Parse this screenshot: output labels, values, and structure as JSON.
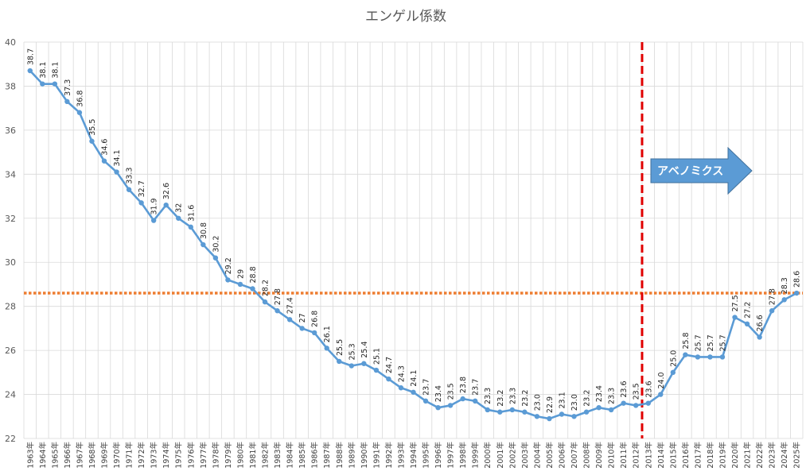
{
  "chart_data": {
    "type": "line",
    "title": "エンゲル係数",
    "xlabel": "",
    "ylabel": "",
    "ylim": [
      22,
      40
    ],
    "yticks": [
      "22",
      "24",
      "26",
      "28",
      "30",
      "32",
      "34",
      "36",
      "38",
      "40"
    ],
    "grid": true,
    "legend": "none",
    "categories": [
      "1963年",
      "1964年",
      "1965年",
      "1966年",
      "1967年",
      "1968年",
      "1969年",
      "1970年",
      "1971年",
      "1972年",
      "1973年",
      "1974年",
      "1975年",
      "1976年",
      "1977年",
      "1978年",
      "1979年",
      "1980年",
      "1981年",
      "1982年",
      "1983年",
      "1984年",
      "1985年",
      "1986年",
      "1987年",
      "1988年",
      "1989年",
      "1990年",
      "1991年",
      "1992年",
      "1993年",
      "1994年",
      "1995年",
      "1996年",
      "1997年",
      "1998年",
      "1999年",
      "2000年",
      "2001年",
      "2002年",
      "2003年",
      "2004年",
      "2005年",
      "2006年",
      "2007年",
      "2008年",
      "2009年",
      "2010年",
      "2011年",
      "2012年",
      "2013年",
      "2014年",
      "2015年",
      "2016年",
      "2017年",
      "2018年",
      "2019年",
      "2020年",
      "2021年",
      "2022年",
      "2023年",
      "2024年",
      "2025年"
    ],
    "series": [
      {
        "values": [
          38.7,
          38.1,
          38.1,
          37.3,
          36.8,
          35.5,
          34.6,
          34.1,
          33.3,
          32.7,
          31.9,
          32.6,
          32,
          31.6,
          30.8,
          30.2,
          29.2,
          29,
          28.8,
          28.2,
          27.8,
          27.4,
          27,
          26.8,
          26.1,
          25.5,
          25.3,
          25.4,
          25.1,
          24.7,
          24.3,
          24.1,
          23.7,
          23.4,
          23.5,
          23.8,
          23.7,
          23.3,
          23.2,
          23.3,
          23.2,
          23.0,
          22.9,
          23.1,
          23.0,
          23.2,
          23.4,
          23.3,
          23.6,
          23.5,
          23.6,
          24.0,
          25.0,
          25.8,
          25.7,
          25.7,
          25.7,
          27.5,
          27.2,
          26.6,
          27.8,
          28.3,
          28.6
        ],
        "labels": [
          "38.7",
          "38.1",
          "38.1",
          "37.3",
          "36.8",
          "35.5",
          "34.6",
          "34.1",
          "33.3",
          "32.7",
          "31.9",
          "32.6",
          "32",
          "31.6",
          "30.8",
          "30.2",
          "29.2",
          "29",
          "28.8",
          "28.2",
          "27.8",
          "27.4",
          "27",
          "26.8",
          "26.1",
          "25.5",
          "25.3",
          "25.4",
          "25.1",
          "24.7",
          "24.3",
          "24.1",
          "23.7",
          "23.4",
          "23.5",
          "23.8",
          "23.7",
          "23.3",
          "23.2",
          "23.3",
          "23.2",
          "23.0",
          "22.9",
          "23.1",
          "23.0",
          "23.2",
          "23.4",
          "23.3",
          "23.6",
          "23.5",
          "23.6",
          "24.0",
          "25.0",
          "25.8",
          "25.7",
          "25.7",
          "25.7",
          "27.5",
          "27.2",
          "26.6",
          "27.8",
          "28.3",
          "28.6"
        ],
        "color": "#5b9bd5"
      }
    ],
    "reference_lines": [
      {
        "orientation": "horizontal",
        "value": 28.6,
        "color": "#ed7d31",
        "style": "dotted"
      },
      {
        "orientation": "vertical",
        "category": "2012年",
        "color": "#e00000",
        "style": "dashed"
      }
    ],
    "annotation": {
      "text": "アベノミクス",
      "color": "#5b9bd5"
    }
  }
}
